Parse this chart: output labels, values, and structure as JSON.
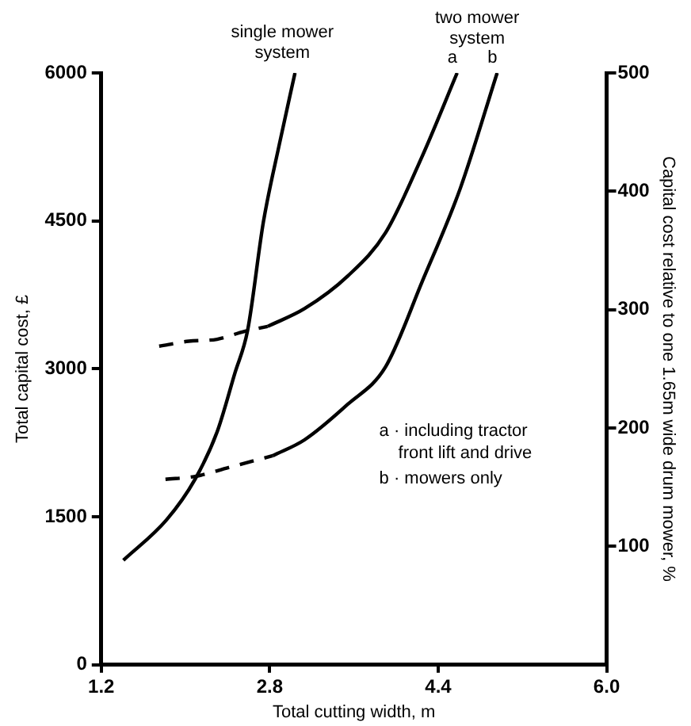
{
  "chart_data": {
    "type": "line",
    "xlabel": "Total cutting width, m",
    "ylabel": "Total capital cost, £",
    "y2label": "Capital cost relative to one 1.65m wide drum mower, %",
    "xlim": [
      1.2,
      6.0
    ],
    "xticks": [
      1.2,
      2.8,
      4.4,
      {
        "value": 6.0,
        "label": "6.0"
      }
    ],
    "ylim": [
      0,
      6000
    ],
    "yticks": [
      0,
      1500,
      3000,
      4500,
      6000
    ],
    "y2lim": [
      0,
      500
    ],
    "y2ticks": [
      100,
      200,
      300,
      400,
      500
    ],
    "grid": false,
    "legend": false,
    "marker": "none",
    "series": [
      {
        "name": "single mower system",
        "color": "#000000",
        "line_style": "solid",
        "x": [
          1.41,
          1.82,
          2.09,
          2.3,
          2.47,
          2.59,
          2.74,
          2.89,
          3.04
        ],
        "values": [
          1060,
          1470,
          1880,
          2360,
          2960,
          3390,
          4490,
          5270,
          6000
        ]
      },
      {
        "color": "#000000",
        "line_style": "dashed",
        "x": [
          1.75,
          2.03,
          2.3,
          2.56,
          2.78
        ],
        "values": [
          3230,
          3280,
          3300,
          3380,
          3430
        ]
      },
      {
        "name": "a",
        "color": "#000000",
        "line_style": "solid",
        "x": [
          2.78,
          3.13,
          3.54,
          3.9,
          4.25,
          4.58
        ],
        "values": [
          3430,
          3610,
          3940,
          4380,
          5160,
          6000
        ]
      },
      {
        "color": "#000000",
        "line_style": "dashed",
        "x": [
          1.81,
          2.09,
          2.41,
          2.83
        ],
        "values": [
          1880,
          1910,
          2000,
          2120
        ]
      },
      {
        "name": "b",
        "color": "#000000",
        "line_style": "solid",
        "x": [
          2.83,
          3.13,
          3.54,
          3.9,
          4.25,
          4.61,
          4.96
        ],
        "values": [
          2120,
          2280,
          2640,
          3020,
          3890,
          4830,
          6000
        ]
      }
    ],
    "annotations": [
      "two mower system",
      "a · including tractor front lift and drive",
      "b · mowers only"
    ]
  }
}
